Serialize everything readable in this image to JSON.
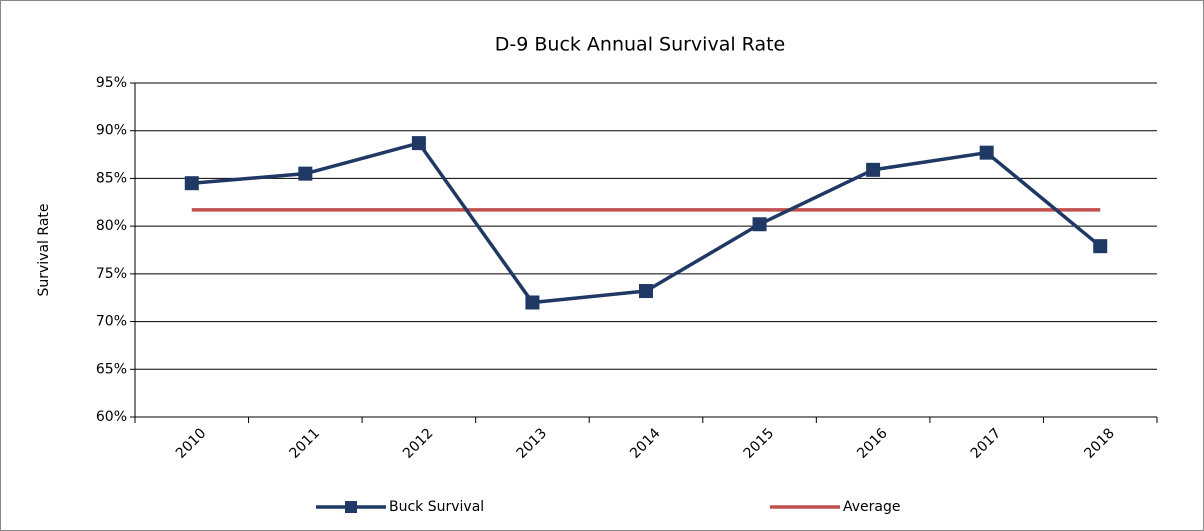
{
  "chart_data": {
    "type": "line",
    "title": "D-9 Buck Annual Survival Rate",
    "y_label": "Survival Rate",
    "categories": [
      "2010",
      "2011",
      "2012",
      "2013",
      "2014",
      "2015",
      "2016",
      "2017",
      "2018"
    ],
    "series": [
      {
        "name": "Buck Survival",
        "color": "#1f3864",
        "marker": "square",
        "values": [
          84.5,
          85.5,
          88.7,
          72.0,
          73.2,
          80.2,
          85.9,
          87.7,
          77.9
        ]
      },
      {
        "name": "Average",
        "color": "#c0504d",
        "values": [
          81.7,
          81.7,
          81.7,
          81.7,
          81.7,
          81.7,
          81.7,
          81.7,
          81.7
        ]
      }
    ],
    "ylim": [
      60,
      95
    ],
    "yticks": [
      {
        "value": 60,
        "label": "60%"
      },
      {
        "value": 65,
        "label": "65%"
      },
      {
        "value": 70,
        "label": "70%"
      },
      {
        "value": 75,
        "label": "75%"
      },
      {
        "value": 80,
        "label": "80%"
      },
      {
        "value": 85,
        "label": "85%"
      },
      {
        "value": 90,
        "label": "90%"
      },
      {
        "value": 95,
        "label": "95%"
      }
    ],
    "grid": true,
    "legend": "bottom"
  }
}
